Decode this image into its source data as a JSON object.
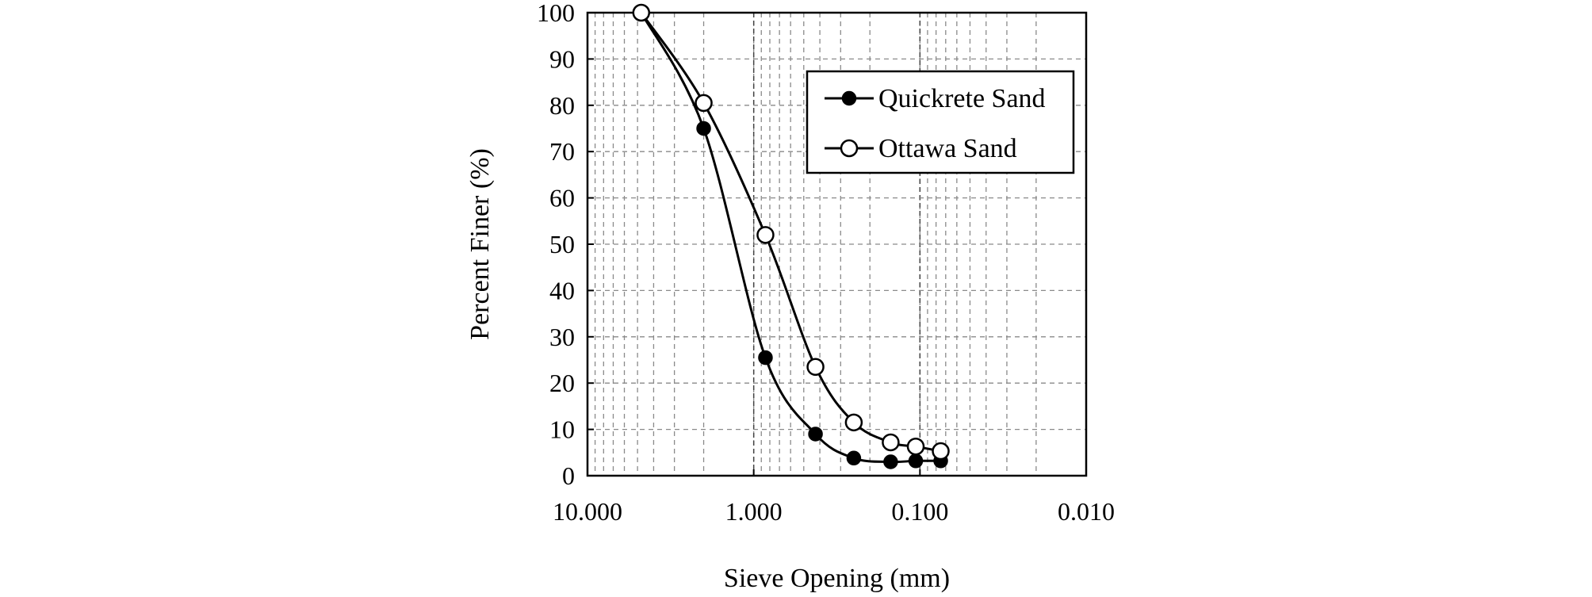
{
  "chart_data": {
    "type": "line",
    "title": "",
    "xlabel": "Sieve Opening (mm)",
    "ylabel": "Percent Finer (%)",
    "x_scale": "log",
    "x_reversed": true,
    "xlim": [
      10,
      0.01
    ],
    "ylim": [
      0,
      100
    ],
    "x_ticks": [
      {
        "value": 10,
        "label": "10.000"
      },
      {
        "value": 1,
        "label": "1.000"
      },
      {
        "value": 0.1,
        "label": "0.100"
      },
      {
        "value": 0.01,
        "label": "0.010"
      }
    ],
    "y_ticks": [
      0,
      10,
      20,
      30,
      40,
      50,
      60,
      70,
      80,
      90,
      100
    ],
    "y_tick_labels": [
      "0",
      "10",
      "20",
      "30",
      "40",
      "50",
      "60",
      "70",
      "80",
      "90",
      "100"
    ],
    "grid": true,
    "legend_position": "top-right",
    "series": [
      {
        "name": "Quickrete Sand",
        "marker": "filled-circle",
        "color": "#000000",
        "x": [
          4.75,
          2.0,
          0.85,
          0.425,
          0.25,
          0.15,
          0.106,
          0.075
        ],
        "y": [
          100,
          75,
          25.5,
          9,
          3.8,
          3.0,
          3.2,
          3.2
        ]
      },
      {
        "name": "Ottawa Sand",
        "marker": "open-circle",
        "color": "#000000",
        "x": [
          4.75,
          2.0,
          0.85,
          0.425,
          0.25,
          0.15,
          0.106,
          0.075
        ],
        "y": [
          100,
          80.5,
          52,
          23.5,
          11.5,
          7.2,
          6.3,
          5.3
        ]
      }
    ]
  }
}
